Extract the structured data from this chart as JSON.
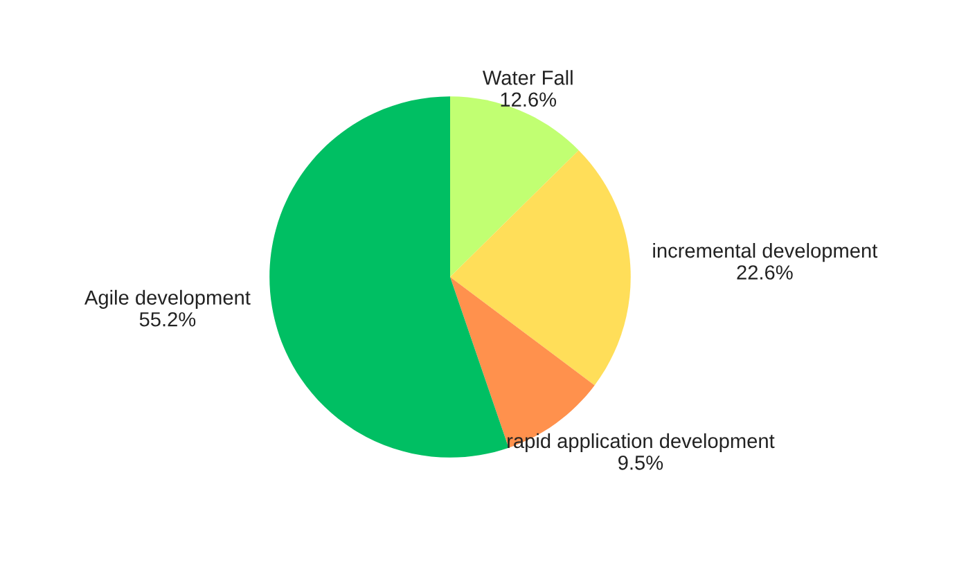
{
  "chart_data": {
    "type": "pie",
    "categories": [
      "Water Fall",
      "incremental development",
      "rapid application development",
      "Agile development"
    ],
    "values": [
      12.6,
      22.6,
      9.5,
      55.2
    ],
    "value_labels": [
      "12.6%",
      "22.6%",
      "9.5%",
      "55.2%"
    ],
    "colors": [
      "#c1ff72",
      "#ffde59",
      "#ff914d",
      "#00bf63"
    ]
  }
}
